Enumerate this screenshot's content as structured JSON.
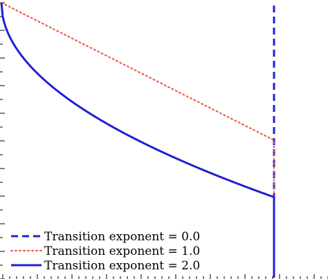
{
  "chart_data": {
    "type": "line",
    "title": "",
    "xlabel": "",
    "ylabel": "",
    "xlim": [
      0,
      1.2
    ],
    "ylim": [
      0,
      1
    ],
    "grid": false,
    "legend_position": "bottom-left",
    "series": [
      {
        "name": "Transition exponent = 0.0",
        "style": "dashed",
        "color": "#1f1fd6",
        "x": [
          1.0,
          1.0
        ],
        "y": [
          0.0,
          1.0
        ]
      },
      {
        "name": "Transition exponent = 1.0",
        "style": "dotted",
        "color": "#e8503a",
        "x": [
          0.0,
          1.0,
          1.0
        ],
        "y": [
          1.0,
          0.5,
          0.0
        ]
      },
      {
        "name": "Transition exponent = 2.0",
        "style": "solid",
        "color": "#1f1fd6",
        "x": [
          0.0,
          0.01,
          0.02,
          0.05,
          0.1,
          0.2,
          0.3,
          0.4,
          0.5,
          0.6,
          0.7,
          0.8,
          0.9,
          1.0,
          1.0
        ],
        "y": [
          1.0,
          0.9293,
          0.9002,
          0.8419,
          0.7764,
          0.6838,
          0.6127,
          0.5528,
          0.5,
          0.4523,
          0.4084,
          0.3675,
          0.3292,
          0.2929,
          0.0
        ]
      }
    ]
  }
}
